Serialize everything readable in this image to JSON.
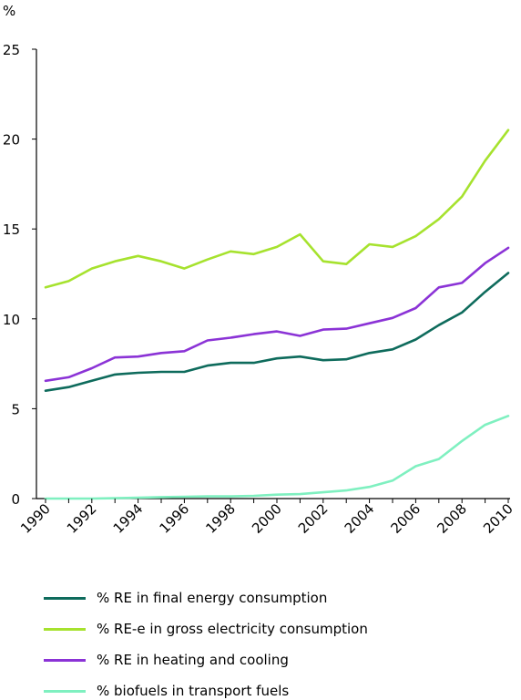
{
  "chart_data": {
    "type": "line",
    "ylabel": "%",
    "xlabel": "",
    "title": "",
    "ylim": [
      0,
      25
    ],
    "yticks": [
      0,
      5,
      10,
      15,
      20,
      25
    ],
    "xlim": [
      1990,
      2010
    ],
    "xticks": [
      1990,
      1992,
      1994,
      1996,
      1998,
      2000,
      2002,
      2004,
      2006,
      2008,
      2010
    ],
    "grid": false,
    "legend_position": "bottom",
    "x": [
      1990,
      1991,
      1992,
      1993,
      1994,
      1995,
      1996,
      1997,
      1998,
      1999,
      2000,
      2001,
      2002,
      2003,
      2004,
      2005,
      2006,
      2007,
      2008,
      2009,
      2010
    ],
    "series": [
      {
        "name": "% RE in final energy consumption",
        "color": "#0e6b5c",
        "values": [
          6.0,
          6.2,
          6.55,
          6.9,
          7.0,
          7.05,
          7.05,
          7.4,
          7.55,
          7.55,
          7.8,
          7.9,
          7.7,
          7.75,
          8.1,
          8.3,
          8.85,
          9.65,
          10.35,
          11.5,
          12.55
        ]
      },
      {
        "name": "% RE-e in gross electricity consumption",
        "color": "#a6e22e",
        "values": [
          11.75,
          12.1,
          12.8,
          13.2,
          13.5,
          13.2,
          12.8,
          13.3,
          13.75,
          13.6,
          14.0,
          14.7,
          13.2,
          13.05,
          14.15,
          14.0,
          14.6,
          15.55,
          16.8,
          18.8,
          20.5
        ]
      },
      {
        "name": "% RE in heating and cooling",
        "color": "#8b33d6",
        "values": [
          6.55,
          6.75,
          7.25,
          7.85,
          7.9,
          8.1,
          8.2,
          8.8,
          8.95,
          9.15,
          9.3,
          9.05,
          9.4,
          9.45,
          9.75,
          10.05,
          10.6,
          11.75,
          12.0,
          13.1,
          13.95
        ]
      },
      {
        "name": "% biofuels in transport fuels",
        "color": "#7ff0c0",
        "values": [
          0.0,
          0.0,
          0.0,
          0.02,
          0.05,
          0.08,
          0.1,
          0.12,
          0.12,
          0.15,
          0.22,
          0.25,
          0.35,
          0.45,
          0.65,
          1.0,
          1.8,
          2.2,
          3.2,
          4.1,
          4.6
        ]
      }
    ]
  }
}
